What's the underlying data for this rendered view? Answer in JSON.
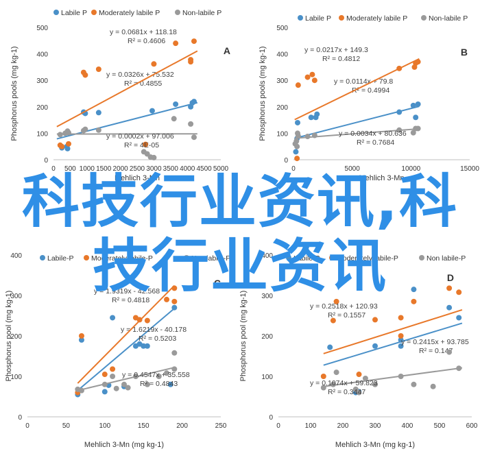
{
  "colors": {
    "labile": "#4a90c8",
    "moderate": "#e8782a",
    "nonlabile": "#9a9a9a",
    "overlay": "#2f8fe6"
  },
  "overlay_text": {
    "line1": "科技行业资讯,科",
    "line2": "技行业资讯"
  },
  "chart_data": [
    {
      "id": "A",
      "type": "scatter",
      "panel_letter": "A",
      "xlabel": "Mehlich 3-Mn",
      "ylabel": "Phosphorus pools (mg kg-1)",
      "xlim": [
        0,
        5000
      ],
      "ylim": [
        0,
        500
      ],
      "xticks": [
        0,
        500,
        1000,
        1500,
        2000,
        2500,
        3000,
        3500,
        4000,
        4500,
        5000
      ],
      "yticks": [
        0,
        100,
        200,
        300,
        400,
        500
      ],
      "grid": false,
      "legend_position": "top",
      "series": [
        {
          "name": "Labile P",
          "color": "#4a90c8",
          "points": [
            [
              250,
              45
            ],
            [
              400,
              50
            ],
            [
              420,
              42
            ],
            [
              900,
              180
            ],
            [
              950,
              175
            ],
            [
              1350,
              178
            ],
            [
              2950,
              185
            ],
            [
              3650,
              210
            ],
            [
              4150,
              215
            ],
            [
              4200,
              220
            ],
            [
              4100,
              200
            ]
          ],
          "fit": {
            "slope": 0.0326,
            "intercept": 75.532,
            "r2": 0.4855,
            "x0": 100,
            "x1": 4300
          },
          "eq_text": "y = 0.0326x + 75.532",
          "r2_text": "R² = 0.4855"
        },
        {
          "name": "Moderately labile P",
          "color": "#e8782a",
          "points": [
            [
              200,
              55
            ],
            [
              250,
              50
            ],
            [
              450,
              60
            ],
            [
              900,
              330
            ],
            [
              950,
              320
            ],
            [
              1350,
              342
            ],
            [
              2750,
              58
            ],
            [
              3000,
              362
            ],
            [
              3650,
              440
            ],
            [
              4100,
              370
            ],
            [
              4100,
              378
            ],
            [
              4200,
              448
            ]
          ],
          "fit": {
            "slope": 0.0681,
            "intercept": 118.18,
            "r2": 0.4606,
            "x0": 100,
            "x1": 4300
          },
          "eq_text": "y = 0.0681x + 118.18",
          "r2_text": "R² = 0.4606"
        },
        {
          "name": "Non-labile P",
          "color": "#9a9a9a",
          "points": [
            [
              200,
              95
            ],
            [
              350,
              100
            ],
            [
              420,
              108
            ],
            [
              450,
              102
            ],
            [
              900,
              110
            ],
            [
              950,
              115
            ],
            [
              1350,
              112
            ],
            [
              2700,
              30
            ],
            [
              2800,
              22
            ],
            [
              2900,
              10
            ],
            [
              3000,
              8
            ],
            [
              3600,
              155
            ],
            [
              4100,
              135
            ],
            [
              4200,
              85
            ]
          ],
          "fit": {
            "slope": 0.0002,
            "intercept": 97.006,
            "r2": 4e-05,
            "x0": 100,
            "x1": 4300
          },
          "eq_text": "y = 0.0002x + 97.006",
          "r2_text": "R² = 4E-05"
        }
      ]
    },
    {
      "id": "B",
      "type": "scatter",
      "panel_letter": "B",
      "xlabel": "Mehlich 3-Mn",
      "ylabel": "Phosphorus pools (mg kg-1)",
      "xlim": [
        0,
        15000
      ],
      "ylim": [
        0,
        500
      ],
      "xticks": [
        0,
        5000,
        10000,
        15000
      ],
      "yticks": [
        0,
        100,
        200,
        300,
        400,
        500
      ],
      "grid": false,
      "legend_position": "top",
      "series": [
        {
          "name": "Labile P",
          "color": "#4a90c8",
          "points": [
            [
              200,
              30
            ],
            [
              300,
              80
            ],
            [
              350,
              140
            ],
            [
              1500,
              160
            ],
            [
              1900,
              160
            ],
            [
              2000,
              172
            ],
            [
              9000,
              180
            ],
            [
              10200,
              205
            ],
            [
              10400,
              160
            ],
            [
              10600,
              210
            ]
          ],
          "fit": {
            "slope": 0.0114,
            "intercept": 79.8,
            "r2": 0.4994,
            "x0": 100,
            "x1": 10700
          },
          "eq_text": "y = 0.0114x + 79.8",
          "r2_text": "R² = 0.4994"
        },
        {
          "name": "Moderately labile P",
          "color": "#e8782a",
          "points": [
            [
              300,
              5
            ],
            [
              400,
              282
            ],
            [
              1200,
              312
            ],
            [
              1600,
              322
            ],
            [
              1800,
              300
            ],
            [
              9000,
              345
            ],
            [
              10300,
              350
            ],
            [
              10400,
              365
            ],
            [
              10600,
              370
            ]
          ],
          "fit": {
            "slope": 0.0217,
            "intercept": 149.3,
            "r2": 0.4812,
            "x0": 100,
            "x1": 10700
          },
          "eq_text": "y = 0.0217x + 149.3",
          "r2_text": "R² = 0.4812"
        },
        {
          "name": "Non-labile P",
          "color": "#9a9a9a",
          "points": [
            [
              150,
              60
            ],
            [
              250,
              70
            ],
            [
              300,
              50
            ],
            [
              350,
              100
            ],
            [
              400,
              90
            ],
            [
              1200,
              88
            ],
            [
              1800,
              92
            ],
            [
              9000,
              112
            ],
            [
              10200,
              102
            ],
            [
              10400,
              118
            ],
            [
              10600,
              118
            ]
          ],
          "fit": {
            "slope": 0.0034,
            "intercept": 80.636,
            "r2": 0.7684,
            "x0": 100,
            "x1": 10700
          },
          "eq_text": "y = 0.0034x + 80.636",
          "r2_text": "R² = 0.7684"
        }
      ]
    },
    {
      "id": "C",
      "type": "scatter",
      "panel_letter": "C",
      "xlabel": "Mehlich 3-Mn (mg kg-1)",
      "ylabel": "Phosphorus pool (mg kg-1)",
      "xlim": [
        0,
        250
      ],
      "ylim": [
        0,
        400
      ],
      "xticks": [
        0,
        50,
        100,
        150,
        200,
        250
      ],
      "yticks": [
        0,
        100,
        200,
        300,
        400
      ],
      "grid": false,
      "legend_position": "top",
      "series": [
        {
          "name": "Labile-P",
          "color": "#4a90c8",
          "points": [
            [
              65,
              55
            ],
            [
              70,
              190
            ],
            [
              100,
              62
            ],
            [
              105,
              78
            ],
            [
              110,
              245
            ],
            [
              125,
              75
            ],
            [
              140,
              175
            ],
            [
              145,
              180
            ],
            [
              150,
              175
            ],
            [
              155,
              175
            ],
            [
              185,
              80
            ],
            [
              190,
              270
            ]
          ],
          "fit": {
            "slope": 1.6219,
            "intercept": -40.178,
            "r2": 0.5203,
            "x0": 65,
            "x1": 190
          },
          "eq_text": "y = 1.6219x - 40.178",
          "r2_text": "R² = 0.5203"
        },
        {
          "name": "Moderately labile-P",
          "color": "#e8782a",
          "points": [
            [
              65,
              60
            ],
            [
              70,
              200
            ],
            [
              100,
              105
            ],
            [
              110,
              118
            ],
            [
              140,
              245
            ],
            [
              145,
              240
            ],
            [
              155,
              238
            ],
            [
              180,
              290
            ],
            [
              190,
              318
            ],
            [
              190,
              285
            ]
          ],
          "fit": {
            "slope": 1.9319,
            "intercept": -42.568,
            "r2": 0.4818,
            "x0": 65,
            "x1": 190
          },
          "eq_text": "y = 1.9319x - 42.568",
          "r2_text": "R² = 0.4818"
        },
        {
          "name": "Non labile-P",
          "color": "#9a9a9a",
          "points": [
            [
              65,
              68
            ],
            [
              70,
              65
            ],
            [
              100,
              80
            ],
            [
              110,
              100
            ],
            [
              115,
              70
            ],
            [
              125,
              80
            ],
            [
              130,
              72
            ],
            [
              140,
              100
            ],
            [
              155,
              80
            ],
            [
              170,
              100
            ],
            [
              180,
              108
            ],
            [
              190,
              118
            ],
            [
              190,
              158
            ]
          ],
          "fit": {
            "slope": 0.4547,
            "intercept": 35.558,
            "r2": 0.4843,
            "x0": 65,
            "x1": 190
          },
          "eq_text": "y = 0.4547x + 35.558",
          "r2_text": "R² = 0.4843"
        }
      ]
    },
    {
      "id": "D",
      "type": "scatter",
      "panel_letter": "D",
      "xlabel": "Mehlich 3-Mn (mg kg-1)",
      "ylabel": "Phosphorus pool (mg kg-1)",
      "xlim": [
        0,
        600
      ],
      "ylim": [
        0,
        400
      ],
      "xticks": [
        0,
        100,
        200,
        300,
        400,
        500,
        600
      ],
      "yticks": [
        0,
        100,
        200,
        300,
        400
      ],
      "grid": false,
      "legend_position": "top",
      "series": [
        {
          "name": "Labile-P",
          "color": "#4a90c8",
          "points": [
            [
              160,
              172
            ],
            [
              240,
              60
            ],
            [
              250,
              62
            ],
            [
              300,
              175
            ],
            [
              380,
              175
            ],
            [
              380,
              190
            ],
            [
              420,
              315
            ],
            [
              530,
              270
            ],
            [
              560,
              245
            ]
          ],
          "fit": {
            "slope": 0.2415,
            "intercept": 93.785,
            "r2": 0.147,
            "x0": 140,
            "x1": 570
          },
          "eq_text": "y = 0.2415x + 93.785",
          "r2_text": "R² = 0.147"
        },
        {
          "name": "Moderately labile-P",
          "color": "#e8782a",
          "points": [
            [
              140,
              100
            ],
            [
              170,
              238
            ],
            [
              180,
              285
            ],
            [
              250,
              105
            ],
            [
              300,
              240
            ],
            [
              380,
              200
            ],
            [
              380,
              245
            ],
            [
              420,
              285
            ],
            [
              530,
              318
            ],
            [
              560,
              308
            ]
          ],
          "fit": {
            "slope": 0.2518,
            "intercept": 120.93,
            "r2": 0.1557,
            "x0": 140,
            "x1": 570
          },
          "eq_text": "y = 0.2518x + 120.93",
          "r2_text": "R² = 0.1557"
        },
        {
          "name": "Non labile-P",
          "color": "#9a9a9a",
          "points": [
            [
              140,
              72
            ],
            [
              170,
              80
            ],
            [
              180,
              110
            ],
            [
              240,
              68
            ],
            [
              250,
              60
            ],
            [
              270,
              95
            ],
            [
              300,
              80
            ],
            [
              380,
              100
            ],
            [
              420,
              80
            ],
            [
              480,
              75
            ],
            [
              530,
              160
            ],
            [
              560,
              120
            ]
          ],
          "fit": {
            "slope": 0.1074,
            "intercept": 59.823,
            "r2": 0.3447,
            "x0": 140,
            "x1": 570
          },
          "eq_text": "y = 0.1074x + 59.823",
          "r2_text": "R² = 0.3447"
        }
      ]
    }
  ]
}
